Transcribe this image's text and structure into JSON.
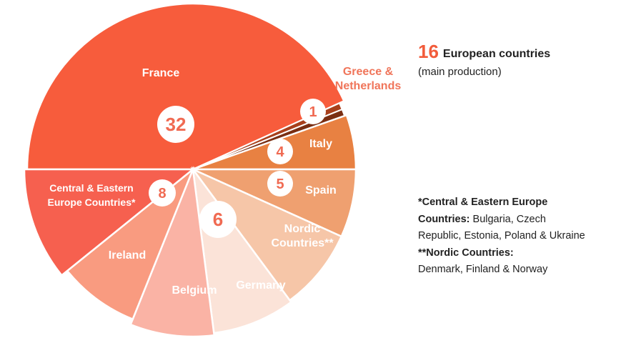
{
  "chart_data": {
    "type": "pie",
    "center_note": "",
    "slices": [
      {
        "label": "France",
        "value": 32,
        "badge": "32",
        "color": "#f75c3c",
        "label_color": "#ffffff"
      },
      {
        "label": "Greece & Netherlands",
        "value": 1,
        "badge": "1",
        "color": "#8a3517",
        "label_color": "#f0755a",
        "sub_colors": [
          "#a8401c",
          "#7a2e12"
        ]
      },
      {
        "label": "Italy",
        "value": 4,
        "badge": "4",
        "color": "#e88142",
        "label_color": "#ffffff"
      },
      {
        "label": "Spain",
        "value": 5,
        "badge": "5",
        "color": "#efa070",
        "label_color": "#ffffff"
      },
      {
        "label": "Nordic Countries**",
        "value": 6,
        "badge": "6",
        "color": "#f6c6a8",
        "label_color": "#ffffff"
      },
      {
        "label": "Germany",
        "value": 6,
        "badge": "",
        "color": "#fbe3d8",
        "label_color": "#ffffff"
      },
      {
        "label": "Belgium",
        "value": 6,
        "badge": "",
        "color": "#fab3a5",
        "label_color": "#ffffff"
      },
      {
        "label": "Ireland",
        "value": 6,
        "badge": "",
        "color": "#f99b80",
        "label_color": "#ffffff"
      },
      {
        "label": "Central & Eastern Europe Countries*",
        "value": 8,
        "badge": "8",
        "color": "#f6604f",
        "label_color": "#ffffff"
      }
    ],
    "shared_badge_note": "6"
  },
  "headline": {
    "number": "16",
    "text": "European countries",
    "sub": "(main production)"
  },
  "notes": {
    "ce_title": "*Central & Eastern Europe Countries:",
    "ce_body": " Bulgaria, Czech Republic, Estonia, Poland & Ukraine",
    "nordic_title": "**Nordic Countries:",
    "nordic_body": "Denmark, Finland & Norway"
  }
}
